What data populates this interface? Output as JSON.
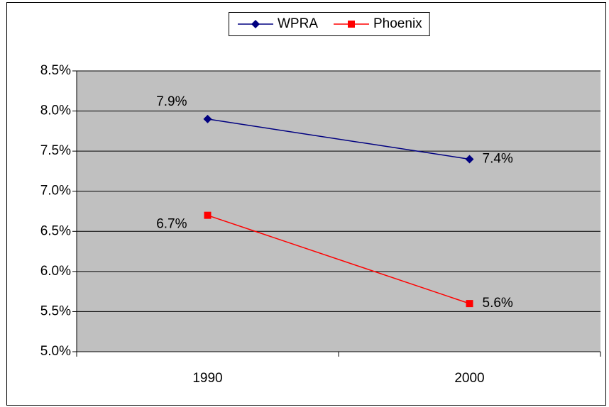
{
  "chart_data": {
    "type": "line",
    "categories": [
      "1990",
      "2000"
    ],
    "series": [
      {
        "name": "WPRA",
        "color": "#000080",
        "marker": "diamond",
        "values": [
          7.9,
          7.4
        ],
        "value_labels": [
          "7.9%",
          "7.4%"
        ]
      },
      {
        "name": "Phoenix",
        "color": "#ff0000",
        "marker": "square",
        "values": [
          6.7,
          5.6
        ],
        "value_labels": [
          "6.7%",
          "5.6%"
        ]
      }
    ],
    "ylim": [
      5.0,
      8.5
    ],
    "yticks": [
      {
        "value": 5.0,
        "label": "5.0%"
      },
      {
        "value": 5.5,
        "label": "5.5%"
      },
      {
        "value": 6.0,
        "label": "6.0%"
      },
      {
        "value": 6.5,
        "label": "6.5%"
      },
      {
        "value": 7.0,
        "label": "7.0%"
      },
      {
        "value": 7.5,
        "label": "7.5%"
      },
      {
        "value": 8.0,
        "label": "8.0%"
      },
      {
        "value": 8.5,
        "label": "8.5%"
      }
    ],
    "grid": true,
    "legend": "top",
    "plot_background": "#c0c0c0"
  }
}
